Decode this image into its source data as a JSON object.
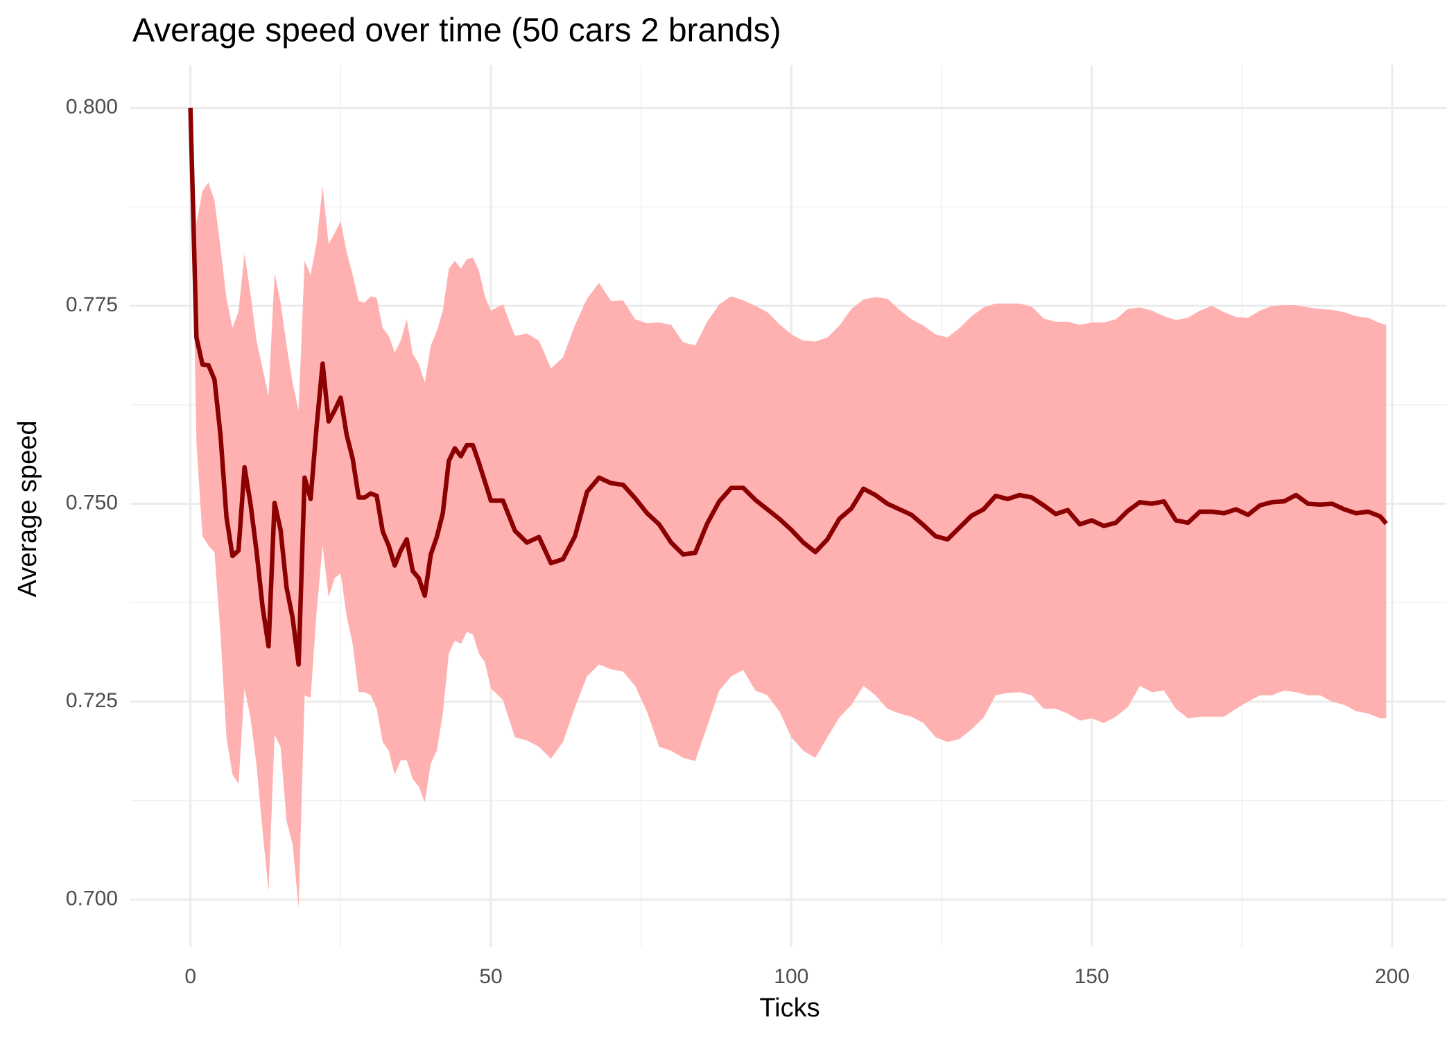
{
  "chart_data": {
    "type": "line",
    "title": "Average speed over time (50 cars 2 brands)",
    "x_label": "Ticks",
    "y_label": "Average speed",
    "color": "#8b0000",
    "band_color": "#ffb1b1",
    "grid": true,
    "xlim": [
      -10,
      209
    ],
    "ylim": [
      0.694,
      0.8054
    ],
    "xticks": [
      0,
      50,
      100,
      150,
      200
    ],
    "yticks": [
      {
        "value": 0.7,
        "label": "0.700"
      },
      0.725,
      {
        "value": 0.75,
        "label": "0.750"
      },
      0.775,
      {
        "value": 0.8,
        "label": "0.800"
      }
    ],
    "x": [
      0,
      1,
      2,
      3,
      4,
      5,
      6,
      7,
      8,
      9,
      10,
      11,
      12,
      13,
      14,
      15,
      16,
      17,
      18,
      19,
      20,
      21,
      22,
      23,
      24,
      25,
      26,
      27,
      28,
      29,
      30,
      31,
      32,
      33,
      34,
      35,
      36,
      37,
      38,
      39,
      40,
      41,
      42,
      43,
      44,
      45,
      46,
      47,
      48,
      49,
      50,
      52,
      54,
      56,
      58,
      60,
      62,
      64,
      66,
      68,
      70,
      72,
      74,
      76,
      78,
      80,
      82,
      84,
      86,
      88,
      90,
      92,
      94,
      96,
      98,
      100,
      102,
      104,
      106,
      108,
      110,
      112,
      114,
      116,
      118,
      120,
      122,
      124,
      126,
      128,
      130,
      132,
      134,
      136,
      138,
      140,
      142,
      144,
      146,
      148,
      150,
      152,
      154,
      156,
      158,
      160,
      162,
      164,
      166,
      168,
      170,
      172,
      174,
      176,
      178,
      180,
      182,
      184,
      186,
      188,
      190,
      192,
      194,
      196,
      198,
      199
    ],
    "values": [
      0.8,
      0.771,
      0.7676,
      0.7675,
      0.7657,
      0.7587,
      0.7483,
      0.7434,
      0.7441,
      0.7546,
      0.75,
      0.744,
      0.737,
      0.732,
      0.7501,
      0.7467,
      0.7394,
      0.7356,
      0.7297,
      0.7533,
      0.7506,
      0.7598,
      0.7677,
      0.7604,
      0.7618,
      0.7634,
      0.7587,
      0.7557,
      0.7508,
      0.7508,
      0.7513,
      0.751,
      0.7465,
      0.7447,
      0.7422,
      0.7441,
      0.7455,
      0.7415,
      0.7406,
      0.7384,
      0.7436,
      0.7458,
      0.7488,
      0.7554,
      0.757,
      0.756,
      0.7574,
      0.7574,
      0.7552,
      0.7528,
      0.7504,
      0.7504,
      0.7466,
      0.7451,
      0.7458,
      0.7425,
      0.743,
      0.7459,
      0.7515,
      0.7533,
      0.7526,
      0.7524,
      0.7507,
      0.7488,
      0.7474,
      0.7451,
      0.7436,
      0.7438,
      0.7475,
      0.7503,
      0.752,
      0.752,
      0.7505,
      0.7493,
      0.7481,
      0.7467,
      0.7451,
      0.7439,
      0.7455,
      0.7481,
      0.7494,
      0.7519,
      0.7511,
      0.75,
      0.7493,
      0.7486,
      0.7473,
      0.7459,
      0.7455,
      0.747,
      0.7485,
      0.7493,
      0.751,
      0.7506,
      0.7511,
      0.7508,
      0.7498,
      0.7487,
      0.7492,
      0.7474,
      0.7479,
      0.7472,
      0.7476,
      0.7491,
      0.7502,
      0.75,
      0.7503,
      0.7479,
      0.7476,
      0.749,
      0.749,
      0.7488,
      0.7493,
      0.7486,
      0.7498,
      0.7502,
      0.7503,
      0.7511,
      0.75,
      0.7499,
      0.75,
      0.7493,
      0.7488,
      0.749,
      0.7484,
      0.7475
    ],
    "upper": [
      0.8,
      0.7854,
      0.7895,
      0.7906,
      0.7883,
      0.7824,
      0.7759,
      0.7722,
      0.7743,
      0.7816,
      0.7765,
      0.7706,
      0.7671,
      0.7636,
      0.7791,
      0.7754,
      0.77,
      0.7653,
      0.7618,
      0.7807,
      0.7789,
      0.783,
      0.7901,
      0.7828,
      0.7842,
      0.7857,
      0.7818,
      0.7789,
      0.7756,
      0.7754,
      0.7762,
      0.776,
      0.7722,
      0.7712,
      0.7691,
      0.7706,
      0.7733,
      0.7689,
      0.7677,
      0.7653,
      0.77,
      0.7718,
      0.7744,
      0.7797,
      0.7807,
      0.7797,
      0.7809,
      0.7811,
      0.7795,
      0.7762,
      0.7744,
      0.7752,
      0.7712,
      0.7715,
      0.7706,
      0.7671,
      0.7685,
      0.7726,
      0.7759,
      0.7779,
      0.7756,
      0.7757,
      0.7733,
      0.7728,
      0.7729,
      0.7726,
      0.7704,
      0.77,
      0.773,
      0.7752,
      0.7762,
      0.7757,
      0.775,
      0.7742,
      0.7727,
      0.7714,
      0.7706,
      0.7705,
      0.771,
      0.7725,
      0.7746,
      0.7758,
      0.7761,
      0.7759,
      0.7745,
      0.7733,
      0.7725,
      0.7714,
      0.771,
      0.7722,
      0.7737,
      0.7748,
      0.7753,
      0.7753,
      0.7753,
      0.7749,
      0.7734,
      0.773,
      0.773,
      0.7726,
      0.7729,
      0.7729,
      0.7733,
      0.7746,
      0.7748,
      0.7744,
      0.7737,
      0.7732,
      0.7735,
      0.7744,
      0.775,
      0.7742,
      0.7736,
      0.7735,
      0.7744,
      0.775,
      0.7751,
      0.7751,
      0.7748,
      0.7746,
      0.7745,
      0.7742,
      0.7737,
      0.7735,
      0.7728,
      0.7726
    ],
    "lower": [
      0.8,
      0.7577,
      0.7459,
      0.7447,
      0.7439,
      0.7335,
      0.7205,
      0.7158,
      0.7146,
      0.7267,
      0.7229,
      0.717,
      0.7087,
      0.7011,
      0.7208,
      0.7193,
      0.7099,
      0.707,
      0.699,
      0.7258,
      0.7255,
      0.7364,
      0.7447,
      0.7382,
      0.7406,
      0.7412,
      0.7358,
      0.7323,
      0.7262,
      0.7262,
      0.7258,
      0.7241,
      0.7199,
      0.7188,
      0.7158,
      0.7176,
      0.7176,
      0.7152,
      0.7143,
      0.7123,
      0.7172,
      0.7188,
      0.7235,
      0.7311,
      0.7327,
      0.7323,
      0.7338,
      0.7335,
      0.7311,
      0.73,
      0.7267,
      0.7252,
      0.7205,
      0.7201,
      0.7193,
      0.7178,
      0.7199,
      0.7243,
      0.7282,
      0.7297,
      0.7291,
      0.7288,
      0.727,
      0.7237,
      0.7193,
      0.7188,
      0.7179,
      0.7175,
      0.7219,
      0.7264,
      0.7282,
      0.729,
      0.7264,
      0.7258,
      0.7238,
      0.7205,
      0.7188,
      0.7179,
      0.7205,
      0.723,
      0.7246,
      0.727,
      0.7258,
      0.7241,
      0.7235,
      0.7231,
      0.7223,
      0.7205,
      0.7199,
      0.7203,
      0.7215,
      0.723,
      0.7258,
      0.7261,
      0.7262,
      0.7258,
      0.7241,
      0.7241,
      0.7235,
      0.7226,
      0.7229,
      0.7223,
      0.7231,
      0.7243,
      0.727,
      0.7262,
      0.7264,
      0.7241,
      0.7229,
      0.7231,
      0.7231,
      0.7231,
      0.7241,
      0.725,
      0.7258,
      0.7258,
      0.7264,
      0.7262,
      0.7258,
      0.7258,
      0.725,
      0.7246,
      0.7238,
      0.7235,
      0.7229,
      0.7229
    ]
  }
}
